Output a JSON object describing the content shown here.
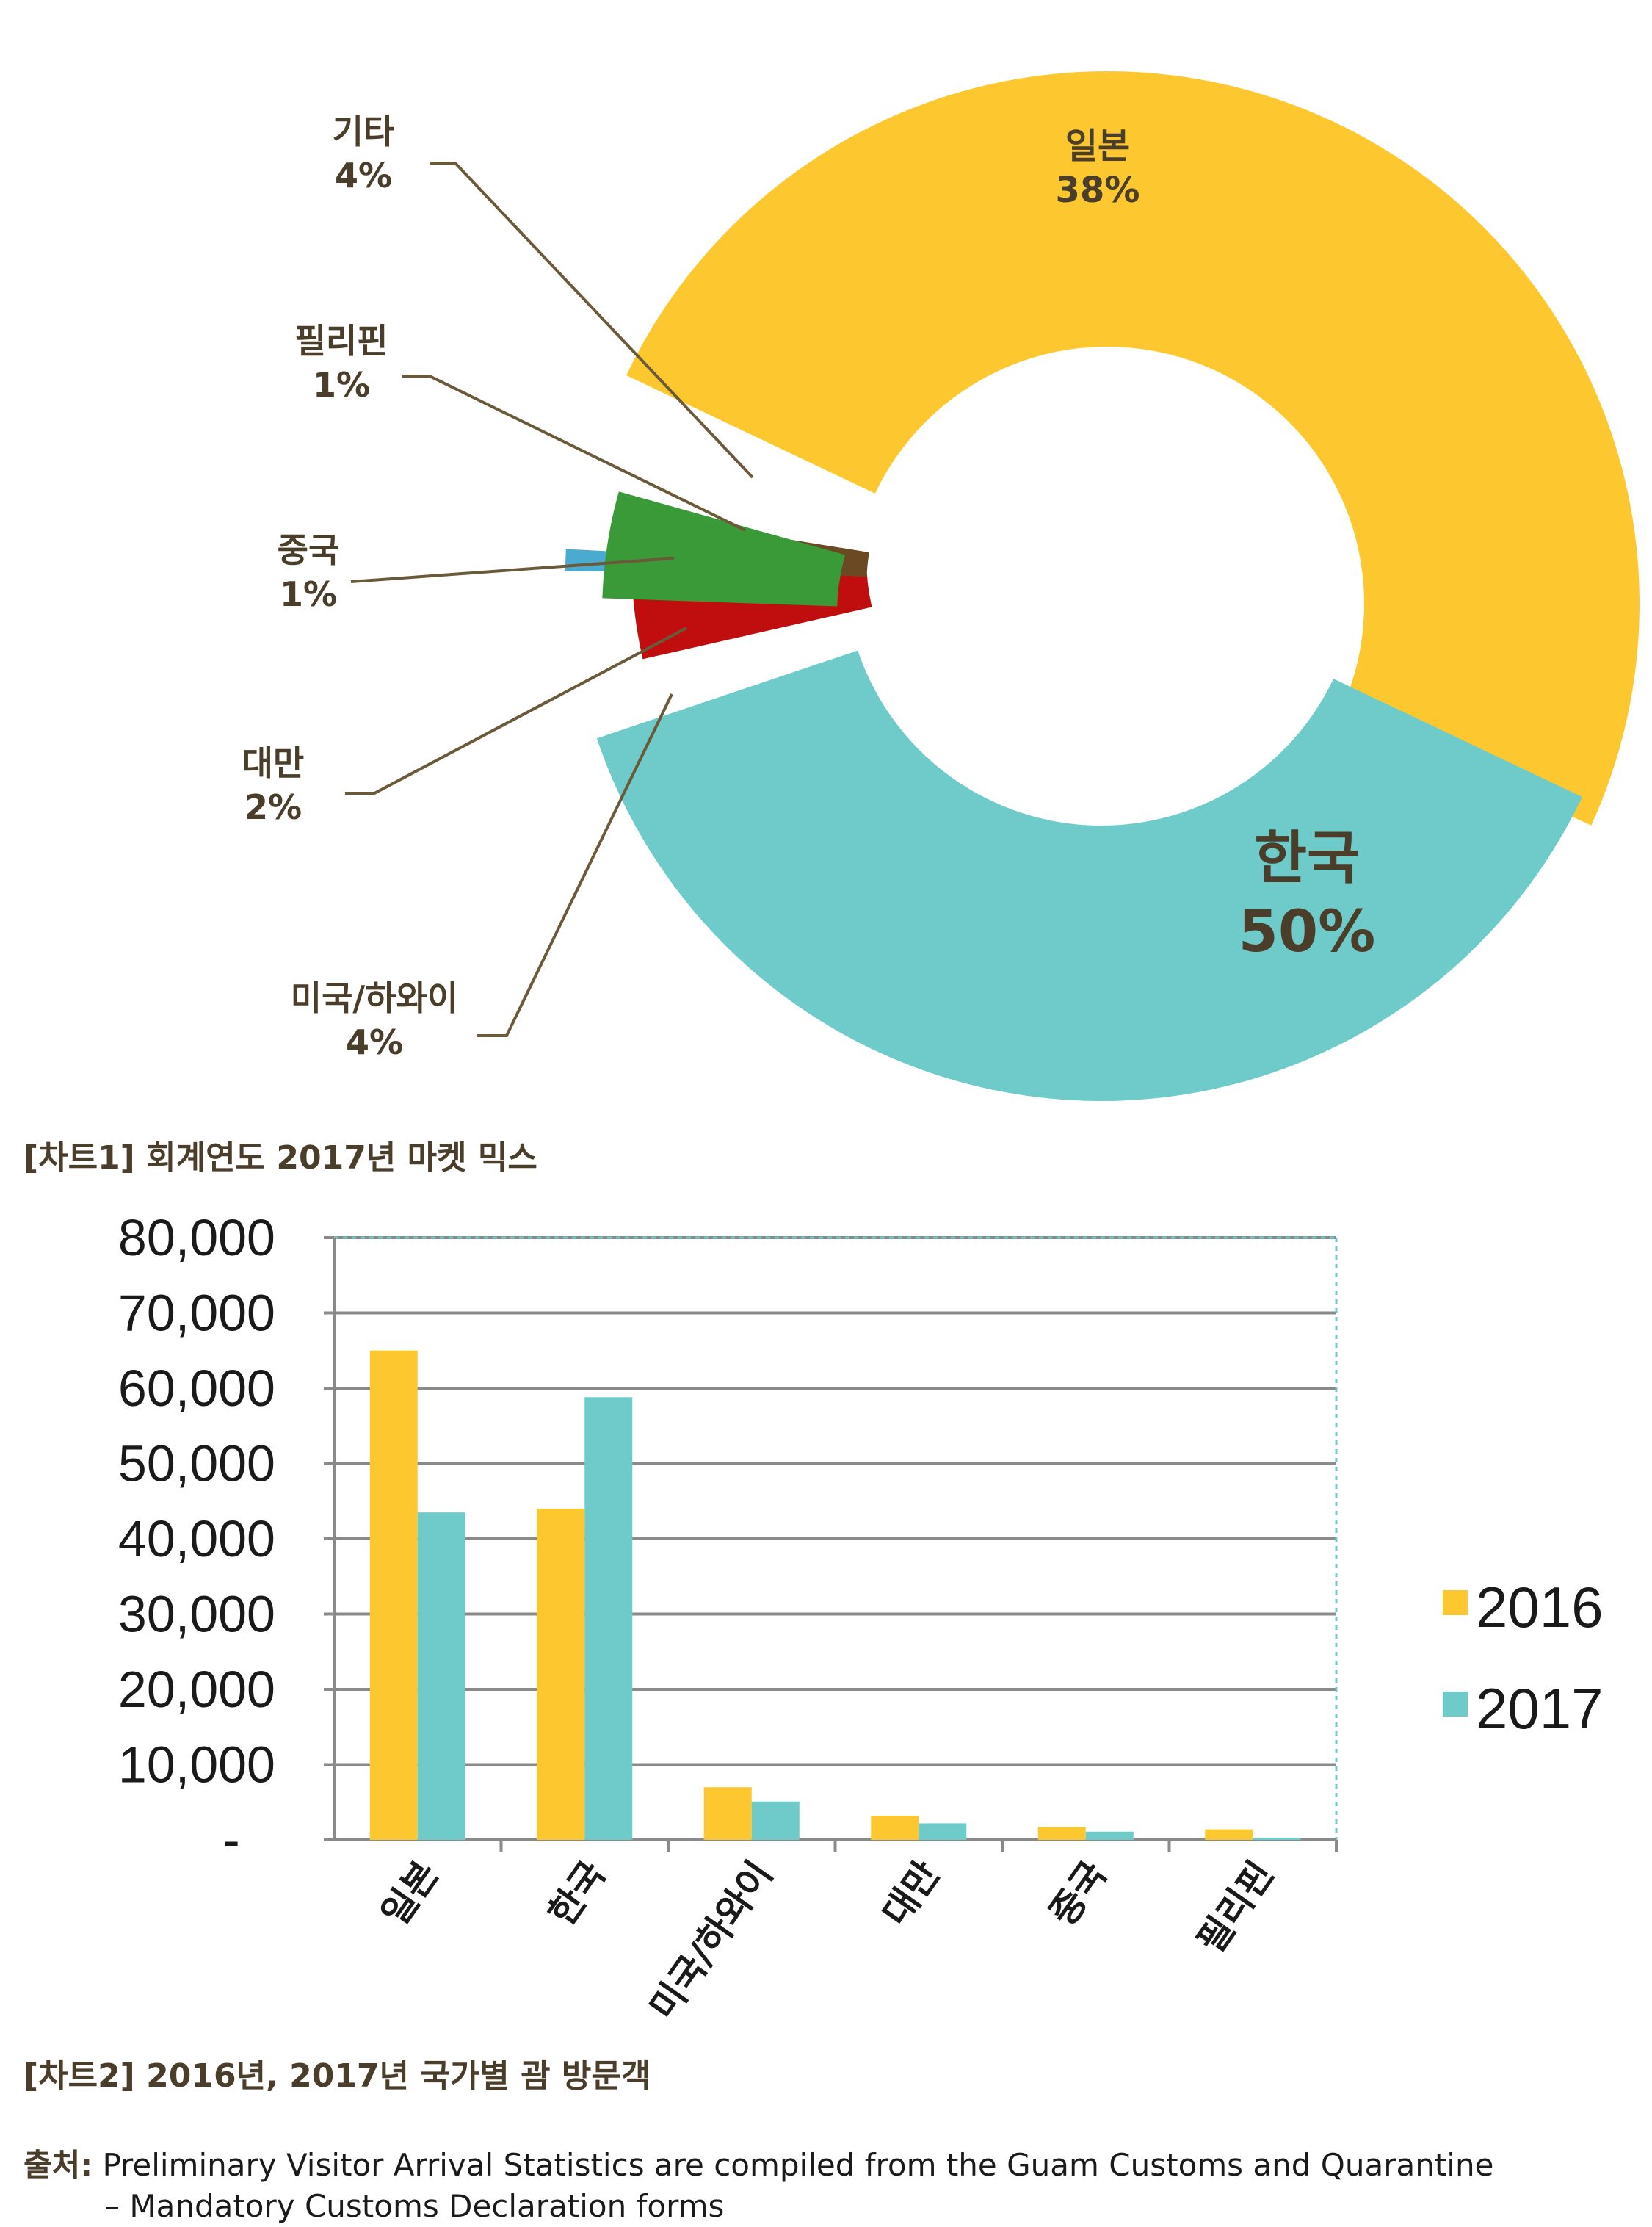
{
  "chart_data": [
    {
      "type": "pie",
      "title": "[차트1] 회계연도 2017년 마켓 믹스",
      "slices": [
        {
          "label": "한국",
          "value": 50,
          "value_label": "50%",
          "color": "#fdc82f"
        },
        {
          "label": "일본",
          "value": 38,
          "value_label": "38%",
          "color": "#6ecbca"
        },
        {
          "label": "기타",
          "value": 4,
          "value_label": "4%",
          "color": "#c00d0d"
        },
        {
          "label": "필리핀",
          "value": 1,
          "value_label": "1%",
          "color": "#f7964b"
        },
        {
          "label": "중국",
          "value": 1,
          "value_label": "1%",
          "color": "#4aaad0"
        },
        {
          "label": "대만",
          "value": 2,
          "value_label": "2%",
          "color": "#6b4a23"
        },
        {
          "label": "미국/하와이",
          "value": 4,
          "value_label": "4%",
          "color": "#3a9a38"
        }
      ],
      "label_color": "#4a3d2a",
      "leader_color": "#6b5a3a"
    },
    {
      "type": "bar",
      "title": "[차트2] 2016년, 2017년 국가별 괌 방문객",
      "categories": [
        "일본",
        "한국",
        "미국/하와이",
        "대만",
        "중국",
        "필리핀"
      ],
      "series": [
        {
          "name": "2016",
          "values": [
            65000,
            44000,
            7000,
            3200,
            1700,
            1400
          ],
          "color": "#fdc82f"
        },
        {
          "name": "2017",
          "values": [
            43500,
            58800,
            5100,
            2200,
            1100,
            300
          ],
          "color": "#6ecbca"
        }
      ],
      "ylim": [
        0,
        80000
      ],
      "yticks": [
        "-",
        "10,000",
        "20,000",
        "30,000",
        "40,000",
        "50,000",
        "60,000",
        "70,000",
        "80,000"
      ],
      "grid": true,
      "legend": "right"
    }
  ],
  "source": {
    "label": "출처:",
    "line1": "Preliminary Visitor Arrival Statistics are compiled from the Guam Customs and Quarantine",
    "line2": "– Mandatory Customs Declaration forms"
  }
}
